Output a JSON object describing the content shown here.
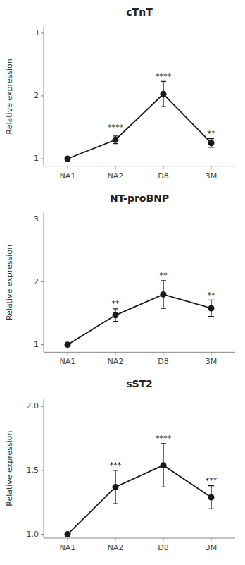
{
  "chart_data": [
    {
      "type": "line",
      "title": "cTnT",
      "categories": [
        "NA1",
        "NA2",
        "D8",
        "3M"
      ],
      "values": [
        1.0,
        1.3,
        2.03,
        1.25
      ],
      "error_upper": [
        0.0,
        0.06,
        0.2,
        0.07
      ],
      "error_lower": [
        0.0,
        0.06,
        0.2,
        0.07
      ],
      "annotations": [
        {
          "text": "****",
          "x": "NA2",
          "y": 1.46
        },
        {
          "text": "****",
          "x": "D8",
          "y": 2.27
        },
        {
          "text": "**",
          "x": "3M",
          "y": 1.36
        }
      ],
      "ylim": [
        0.88,
        3.1
      ],
      "yticks": [
        1,
        2,
        3
      ],
      "ylabel": "Relative expression",
      "color": "#1a1a1a",
      "grid": false
    },
    {
      "type": "line",
      "title": "NT-proBNP",
      "categories": [
        "NA1",
        "NA2",
        "D8",
        "3M"
      ],
      "values": [
        1.0,
        1.47,
        1.8,
        1.58
      ],
      "error_upper": [
        0.0,
        0.1,
        0.22,
        0.13
      ],
      "error_lower": [
        0.0,
        0.1,
        0.22,
        0.13
      ],
      "annotations": [
        {
          "text": "**",
          "x": "NA2",
          "y": 1.61
        },
        {
          "text": "**",
          "x": "D8",
          "y": 2.06
        },
        {
          "text": "**",
          "x": "3M",
          "y": 1.75
        }
      ],
      "ylim": [
        0.88,
        3.1
      ],
      "yticks": [
        1,
        2,
        3
      ],
      "ylabel": "Relative expression",
      "color": "#1a1a1a",
      "grid": false
    },
    {
      "type": "line",
      "title": "sST2",
      "categories": [
        "NA1",
        "NA2",
        "D8",
        "3M"
      ],
      "values": [
        1.0,
        1.37,
        1.54,
        1.29
      ],
      "error_upper": [
        0.0,
        0.13,
        0.17,
        0.09
      ],
      "error_lower": [
        0.0,
        0.13,
        0.17,
        0.09
      ],
      "annotations": [
        {
          "text": "***",
          "x": "NA2",
          "y": 1.52
        },
        {
          "text": "****",
          "x": "D8",
          "y": 1.73
        },
        {
          "text": "***",
          "x": "3M",
          "y": 1.4
        }
      ],
      "ylim": [
        0.97,
        2.06
      ],
      "yticks": [
        {
          "value": 1.0,
          "label": "1.0"
        },
        1.5,
        {
          "value": 2.0,
          "label": "2.0"
        }
      ],
      "ylabel": "Relative expression",
      "color": "#1a1a1a",
      "grid": false
    }
  ]
}
